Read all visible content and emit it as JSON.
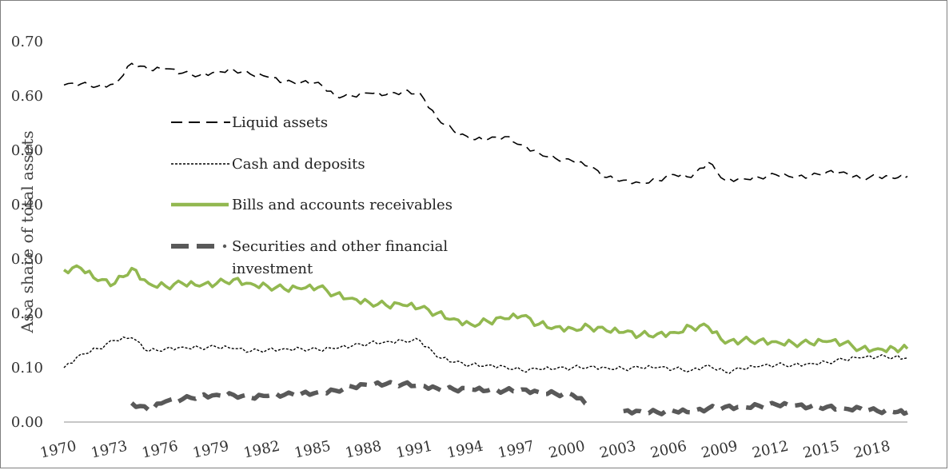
{
  "chart_data": {
    "type": "line",
    "title": "",
    "xlabel": "",
    "ylabel": "As a share of total assets",
    "ylim": [
      0,
      0.7
    ],
    "yticks": [
      "0.00",
      "0.10",
      "0.20",
      "0.30",
      "0.40",
      "0.50",
      "0.60",
      "0.70"
    ],
    "xticks": [
      "1970",
      "1973",
      "1976",
      "1979",
      "1982",
      "1985",
      "1988",
      "1991",
      "1994",
      "1997",
      "2000",
      "2003",
      "2006",
      "2009",
      "2012",
      "2015",
      "2018"
    ],
    "xlim": [
      1970,
      2019.75
    ],
    "grid": false,
    "legend_position": "center-left",
    "x": [
      1970,
      1971,
      1972,
      1973,
      1974,
      1975,
      1976,
      1977,
      1978,
      1979,
      1980,
      1981,
      1982,
      1983,
      1984,
      1985,
      1986,
      1987,
      1988,
      1989,
      1990,
      1991,
      1992,
      1993,
      1994,
      1995,
      1996,
      1997,
      1998,
      1999,
      2000,
      2001,
      2002,
      2003,
      2004,
      2005,
      2006,
      2007,
      2008,
      2009,
      2010,
      2011,
      2012,
      2013,
      2014,
      2015,
      2016,
      2017,
      2018,
      2019,
      2019.75
    ],
    "series": [
      {
        "name": "Liquid assets",
        "style": "long-dash",
        "color": "#000000",
        "values": [
          0.62,
          0.622,
          0.618,
          0.622,
          0.66,
          0.648,
          0.65,
          0.642,
          0.638,
          0.645,
          0.648,
          0.64,
          0.635,
          0.625,
          0.625,
          0.625,
          0.6,
          0.6,
          0.605,
          0.602,
          0.608,
          0.605,
          0.56,
          0.535,
          0.52,
          0.52,
          0.525,
          0.51,
          0.495,
          0.485,
          0.48,
          0.47,
          0.45,
          0.445,
          0.44,
          0.445,
          0.455,
          0.45,
          0.478,
          0.445,
          0.448,
          0.45,
          0.455,
          0.45,
          0.452,
          0.46,
          0.46,
          0.448,
          0.452,
          0.448,
          0.452
        ]
      },
      {
        "name": "Cash and deposits",
        "style": "dotted",
        "color": "#000000",
        "values": [
          0.1,
          0.125,
          0.135,
          0.15,
          0.155,
          0.13,
          0.135,
          0.138,
          0.137,
          0.138,
          0.135,
          0.13,
          0.133,
          0.135,
          0.135,
          0.133,
          0.135,
          0.14,
          0.145,
          0.148,
          0.15,
          0.15,
          0.12,
          0.11,
          0.105,
          0.105,
          0.102,
          0.095,
          0.097,
          0.098,
          0.1,
          0.102,
          0.1,
          0.098,
          0.1,
          0.1,
          0.098,
          0.095,
          0.105,
          0.092,
          0.098,
          0.102,
          0.105,
          0.105,
          0.108,
          0.11,
          0.115,
          0.118,
          0.12,
          0.12,
          0.118
        ]
      },
      {
        "name": "Bills and accounts receivables",
        "style": "solid",
        "color": "#92b850",
        "values": [
          0.28,
          0.283,
          0.26,
          0.255,
          0.283,
          0.255,
          0.25,
          0.255,
          0.25,
          0.255,
          0.262,
          0.255,
          0.25,
          0.245,
          0.245,
          0.248,
          0.235,
          0.228,
          0.22,
          0.215,
          0.215,
          0.21,
          0.2,
          0.19,
          0.18,
          0.185,
          0.19,
          0.195,
          0.18,
          0.175,
          0.172,
          0.175,
          0.168,
          0.165,
          0.16,
          0.162,
          0.165,
          0.175,
          0.175,
          0.145,
          0.15,
          0.15,
          0.148,
          0.145,
          0.145,
          0.148,
          0.145,
          0.135,
          0.135,
          0.135,
          0.135
        ]
      },
      {
        "name": "Securities and other financial investment",
        "style": "heavy-dash",
        "color": "#595959",
        "values": [
          null,
          null,
          null,
          null,
          0.035,
          0.022,
          0.038,
          0.042,
          0.048,
          0.05,
          0.05,
          0.045,
          0.048,
          0.05,
          0.052,
          0.055,
          0.058,
          0.065,
          0.068,
          0.07,
          0.07,
          0.068,
          0.062,
          0.06,
          0.06,
          0.058,
          0.058,
          0.06,
          0.055,
          0.052,
          0.05,
          0.03,
          null,
          0.02,
          0.02,
          0.018,
          0.02,
          0.018,
          0.025,
          0.028,
          0.028,
          0.03,
          0.032,
          0.03,
          0.028,
          0.028,
          0.025,
          0.025,
          0.02,
          0.018,
          0.018
        ]
      }
    ],
    "legend": [
      {
        "label": "Liquid assets"
      },
      {
        "label": "Cash and deposits"
      },
      {
        "label": "Bills and accounts receivables"
      },
      {
        "label": "Securities and other financial",
        "label_line2": "investment"
      }
    ]
  }
}
